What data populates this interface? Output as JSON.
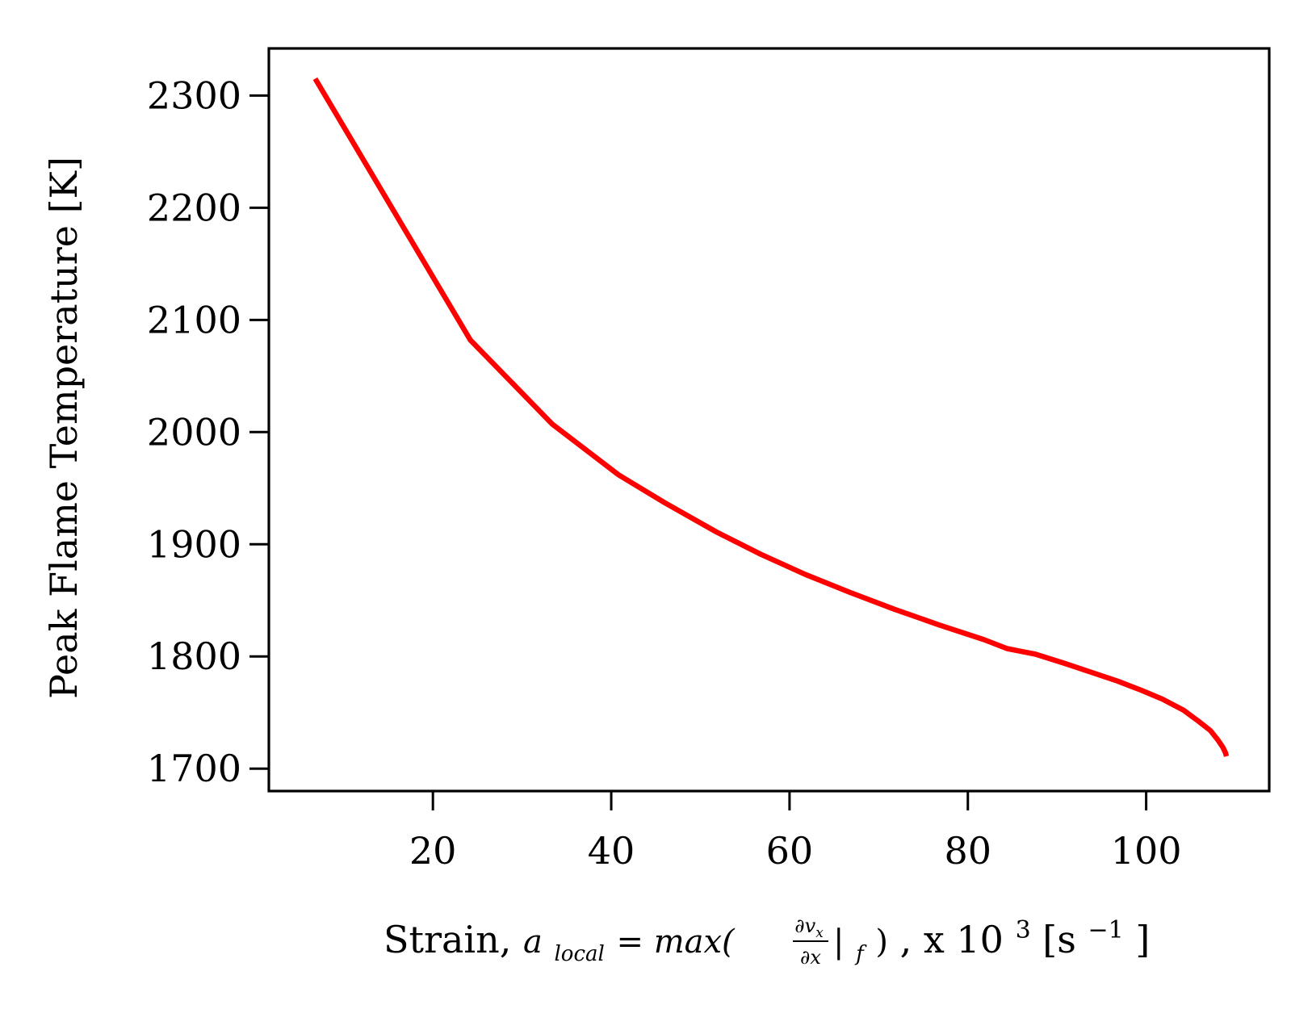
{
  "chart_data": {
    "type": "line",
    "title": "",
    "xlabel": {
      "prefix": "Strain, ",
      "math_a": "a",
      "math_sub": "local",
      "math_eq": " = max(",
      "frac_num": "∂v",
      "frac_num_sub": "x",
      "frac_den": "∂x",
      "math_bar": "|",
      "math_bar_sub": "f",
      "math_close": ")",
      "suffix": ", x 10",
      "suffix_sup": "3",
      "unit_open": " [s",
      "unit_sup": "−1",
      "unit_close": "]"
    },
    "ylabel": "Peak Flame Temperature [K]",
    "xlim": [
      1.6,
      113.8
    ],
    "ylim": [
      1680,
      2342
    ],
    "xticks": [
      20,
      40,
      60,
      80,
      100
    ],
    "yticks": [
      1700,
      1800,
      1900,
      2000,
      2100,
      2200,
      2300
    ],
    "grid": false,
    "series": [
      {
        "color": "#ff0000",
        "x": [
          6.8,
          24.2,
          33.4,
          40.8,
          46.0,
          51.8,
          56.8,
          61.8,
          66.8,
          71.8,
          76.8,
          81.8,
          84.4,
          87.6,
          90.8,
          93.8,
          96.8,
          99.4,
          101.8,
          104.2,
          105.9,
          107.2,
          108.0,
          108.6,
          108.9,
          109.0
        ],
        "y": [
          2315,
          2082,
          2007,
          1962,
          1937,
          1911,
          1891,
          1873,
          1857,
          1842,
          1828,
          1815,
          1807,
          1802,
          1794,
          1786,
          1778,
          1770,
          1762,
          1752,
          1742,
          1734,
          1726,
          1719,
          1714,
          1711
        ]
      }
    ]
  }
}
